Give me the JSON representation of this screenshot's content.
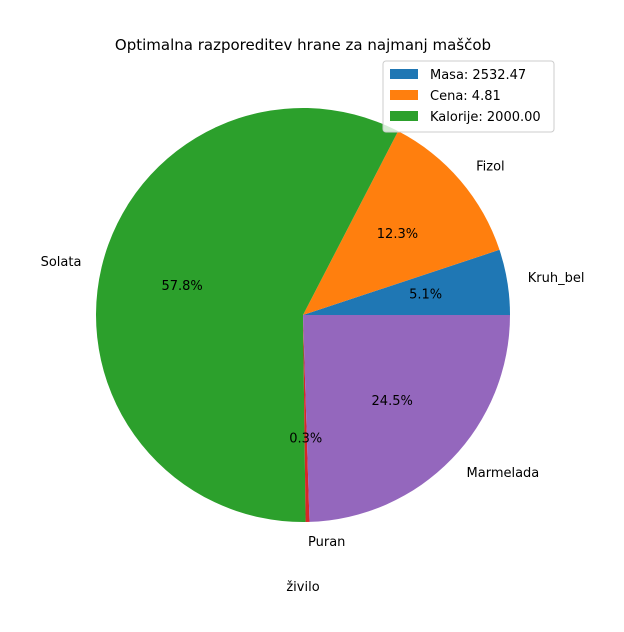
{
  "chart_data": {
    "type": "pie",
    "title": "Optimalna razporeditev hrane za najmanj maščob",
    "xlabel": "živilo",
    "slices": [
      {
        "label": "Kruh_bel",
        "value": 5.1,
        "pct_label": "5.1%",
        "color": "#1f77b4"
      },
      {
        "label": "Fizol",
        "value": 12.3,
        "pct_label": "12.3%",
        "color": "#ff7f0e"
      },
      {
        "label": "Solata",
        "value": 57.8,
        "pct_label": "57.8%",
        "color": "#2ca02c"
      },
      {
        "label": "Puran",
        "value": 0.3,
        "pct_label": "0.3%",
        "color": "#d62728"
      },
      {
        "label": "Marmelada",
        "value": 24.5,
        "pct_label": "24.5%",
        "color": "#9467bd"
      }
    ],
    "legend": {
      "position": "top-right",
      "entries": [
        {
          "label": "Masa: 2532.47",
          "color": "#1f77b4"
        },
        {
          "label": "Cena: 4.81",
          "color": "#ff7f0e"
        },
        {
          "label": "Kalorije: 2000.00",
          "color": "#2ca02c"
        }
      ]
    }
  }
}
